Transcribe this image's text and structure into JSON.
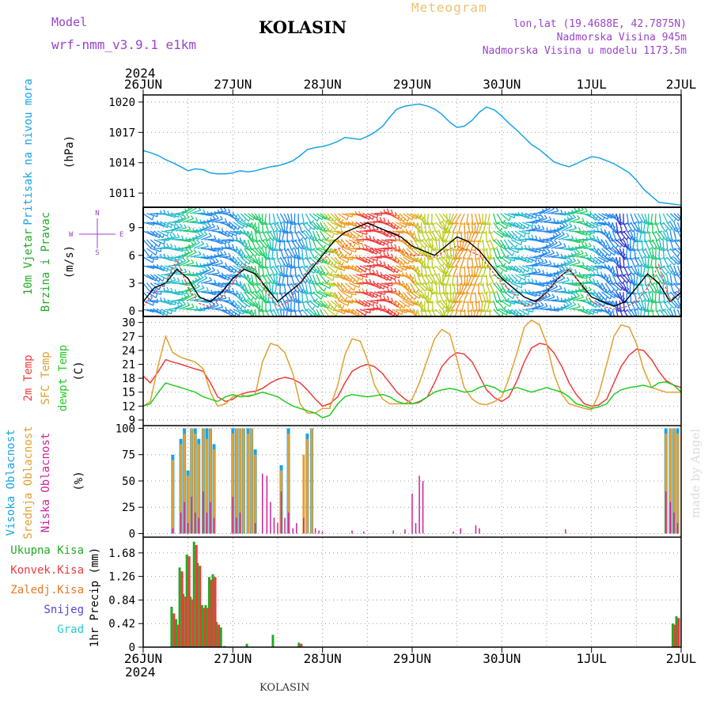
{
  "header": {
    "model_label": "Model",
    "model_name": "wrf-nmm_v3.9.1 e1km",
    "station": "KOLASIN",
    "product": "Meteogram",
    "coords": "lon,lat (19.4688E, 42.7875N)",
    "elevation": "Nadmorska Visina 945m",
    "model_elevation": "Nadmorska Visina u modelu 1173.5m",
    "footer_station": "KOLASIN",
    "credit": "made by Angel"
  },
  "time_axis": {
    "year": "2024",
    "labels": [
      "26JUN",
      "27JUN",
      "28JUN",
      "29JUN",
      "30JUN",
      "1JUL",
      "2JUL"
    ]
  },
  "colors": {
    "pressure": "#1aa3e8",
    "temp2m": "#ee3b3b",
    "sfc_temp": "#e0a030",
    "dewpoint": "#22cc22",
    "high_cloud": "#1aa3e8",
    "mid_cloud": "#e0a030",
    "low_cloud": "#cc2299",
    "precip_total": "#22aa22",
    "precip_conv": "#ee3b3b",
    "precip_strat": "#ee7722",
    "snow": "#5544dd",
    "hail": "#22cccc",
    "purple_text": "#9944cc"
  },
  "chart_data": [
    {
      "type": "line",
      "panel": "pressure",
      "ylabel": "Pritisak na nivou mora",
      "unit": "(hPa)",
      "yticks": [
        1011,
        1014,
        1017,
        1020
      ],
      "ylim": [
        1009.6,
        1020.7
      ],
      "x_days": [
        0,
        0.08,
        0.17,
        0.25,
        0.33,
        0.42,
        0.5,
        0.58,
        0.67,
        0.75,
        0.83,
        0.92,
        1.0,
        1.08,
        1.17,
        1.25,
        1.33,
        1.42,
        1.5,
        1.58,
        1.67,
        1.75,
        1.83,
        1.92,
        2.0,
        2.08,
        2.17,
        2.25,
        2.33,
        2.42,
        2.5,
        2.58,
        2.67,
        2.75,
        2.83,
        2.92,
        3.0,
        3.08,
        3.17,
        3.25,
        3.33,
        3.42,
        3.5,
        3.58,
        3.67,
        3.75,
        3.83,
        3.92,
        4.0,
        4.08,
        4.17,
        4.25,
        4.33,
        4.42,
        4.5,
        4.58,
        4.67,
        4.75,
        4.83,
        4.92,
        5.0,
        5.08,
        5.17,
        5.25,
        5.33,
        5.42,
        5.5,
        5.58,
        5.67,
        5.75,
        5.83,
        5.92,
        6.0
      ],
      "values": [
        1015.2,
        1015.0,
        1014.7,
        1014.3,
        1014.0,
        1013.6,
        1013.2,
        1013.4,
        1013.3,
        1013.0,
        1012.9,
        1012.9,
        1013.0,
        1013.2,
        1013.1,
        1013.2,
        1013.4,
        1013.6,
        1013.7,
        1013.9,
        1014.2,
        1014.7,
        1015.3,
        1015.5,
        1015.6,
        1015.8,
        1016.1,
        1016.5,
        1016.4,
        1016.3,
        1016.6,
        1017.0,
        1017.6,
        1018.5,
        1019.3,
        1019.6,
        1019.7,
        1019.8,
        1019.6,
        1019.3,
        1018.8,
        1018.0,
        1017.5,
        1017.6,
        1018.2,
        1019.0,
        1019.5,
        1019.2,
        1018.6,
        1017.9,
        1017.2,
        1016.5,
        1015.8,
        1015.3,
        1014.7,
        1014.1,
        1013.8,
        1013.6,
        1013.9,
        1014.3,
        1014.6,
        1014.5,
        1014.2,
        1013.9,
        1013.5,
        1013.0,
        1012.3,
        1011.4,
        1010.7,
        1010.1,
        1010.0,
        1009.9,
        1009.8
      ]
    },
    {
      "type": "barbs",
      "panel": "wind",
      "ylabel": "10m Vjetar Brzina i Pravac",
      "unit": "(m/s)",
      "compass": {
        "n": "N",
        "s": "S",
        "w": "W",
        "e": "E"
      },
      "yticks": [
        0,
        3,
        6,
        9
      ],
      "ylim": [
        -0.6,
        11.2
      ],
      "x_days": [
        0,
        0.125,
        0.25,
        0.375,
        0.5,
        0.625,
        0.75,
        0.875,
        1.0,
        1.125,
        1.25,
        1.375,
        1.5,
        1.625,
        1.75,
        1.875,
        2.0,
        2.125,
        2.25,
        2.375,
        2.5,
        2.625,
        2.75,
        2.875,
        3.0,
        3.125,
        3.25,
        3.375,
        3.5,
        3.625,
        3.75,
        3.875,
        4.0,
        4.125,
        4.25,
        4.375,
        4.5,
        4.625,
        4.75,
        4.875,
        5.0,
        5.125,
        5.25,
        5.375,
        5.5,
        5.625,
        5.75,
        5.875,
        6.0
      ],
      "speed": [
        1.0,
        2.5,
        3.0,
        4.5,
        3.5,
        1.5,
        1.0,
        2.0,
        3.5,
        4.5,
        4.0,
        2.5,
        1.0,
        2.0,
        3.0,
        4.5,
        6.0,
        7.5,
        8.5,
        9.0,
        9.5,
        9.0,
        8.5,
        8.0,
        7.0,
        6.5,
        6.0,
        7.0,
        8.0,
        7.5,
        6.5,
        5.0,
        3.5,
        2.5,
        1.5,
        1.0,
        2.0,
        3.5,
        4.5,
        3.0,
        1.5,
        1.0,
        0.5,
        1.0,
        2.5,
        4.0,
        3.0,
        1.0,
        2.0
      ],
      "sfc_trace": [
        0.5,
        2.0,
        3.0,
        5.5,
        2.5,
        0.8,
        0.4,
        1.5,
        3.0,
        5.0,
        4.5,
        2.0,
        0.5,
        1.0,
        3.0,
        5.0,
        5.5,
        6.5,
        7.0,
        7.5,
        7.0,
        6.5,
        6.5,
        6.5,
        6.0,
        6.0,
        5.8,
        6.5,
        7.0,
        6.5,
        6.0,
        4.5,
        3.0,
        2.0,
        0.5,
        0.8,
        2.0,
        3.5,
        4.5,
        3.0,
        1.0,
        0.5,
        0.2,
        0.4,
        1.0,
        2.5,
        5.0,
        1.0,
        2.5
      ],
      "speed_colors": [
        "#3333cc",
        "#2288ee",
        "#22bbcc",
        "#22cc66",
        "#bbcc22",
        "#ee9922",
        "#ee3b3b"
      ]
    },
    {
      "type": "line",
      "panel": "temperature",
      "series_labels": [
        "2m Temp",
        "SFC Temp",
        "dewpt Temp"
      ],
      "unit": "(C)",
      "yticks": [
        9,
        12,
        15,
        18,
        21,
        24,
        27,
        30
      ],
      "ylim": [
        7.8,
        31.3
      ],
      "x_days": [
        0,
        0.08,
        0.17,
        0.25,
        0.33,
        0.42,
        0.5,
        0.58,
        0.67,
        0.75,
        0.83,
        0.92,
        1.0,
        1.08,
        1.17,
        1.25,
        1.33,
        1.42,
        1.5,
        1.58,
        1.67,
        1.75,
        1.83,
        1.92,
        2.0,
        2.08,
        2.17,
        2.25,
        2.33,
        2.42,
        2.5,
        2.58,
        2.67,
        2.75,
        2.83,
        2.92,
        3.0,
        3.08,
        3.17,
        3.25,
        3.33,
        3.42,
        3.5,
        3.58,
        3.67,
        3.75,
        3.83,
        3.92,
        4.0,
        4.08,
        4.17,
        4.25,
        4.33,
        4.42,
        4.5,
        4.58,
        4.67,
        4.75,
        4.83,
        4.92,
        5.0,
        5.08,
        5.17,
        5.25,
        5.33,
        5.42,
        5.5,
        5.58,
        5.67,
        5.75,
        5.83,
        5.92,
        6.0
      ],
      "series": [
        {
          "values": [
            18.5,
            17.0,
            19.5,
            22.0,
            21.5,
            21.0,
            20.5,
            20.0,
            19.5,
            17.0,
            14.0,
            13.0,
            13.5,
            14.5,
            15.0,
            15.2,
            15.8,
            17.0,
            17.8,
            18.2,
            17.8,
            17.0,
            15.5,
            13.5,
            12.0,
            12.5,
            14.0,
            17.0,
            19.5,
            20.5,
            21.0,
            20.5,
            19.0,
            17.0,
            15.0,
            13.5,
            12.5,
            12.8,
            14.0,
            17.0,
            20.5,
            22.5,
            23.5,
            23.2,
            21.5,
            18.5,
            15.5,
            13.8,
            13.0,
            14.0,
            17.5,
            21.5,
            24.5,
            25.5,
            25.2,
            23.5,
            20.5,
            17.0,
            14.5,
            12.5,
            12.0,
            12.2,
            13.5,
            17.0,
            20.5,
            23.0,
            24.2,
            24.0,
            22.0,
            19.5,
            17.5,
            16.5,
            16.0
          ]
        },
        {
          "values": [
            12.0,
            13.0,
            21.0,
            27.0,
            23.5,
            22.5,
            22.0,
            21.5,
            20.0,
            15.0,
            12.0,
            12.5,
            14.0,
            14.5,
            14.0,
            14.5,
            21.5,
            25.5,
            25.0,
            23.5,
            19.0,
            12.5,
            10.5,
            10.5,
            11.5,
            11.5,
            16.5,
            23.0,
            26.5,
            26.0,
            22.0,
            16.5,
            13.5,
            12.5,
            12.5,
            12.5,
            13.5,
            17.0,
            22.0,
            26.5,
            28.5,
            27.5,
            22.0,
            16.0,
            13.5,
            12.5,
            12.3,
            13.0,
            14.0,
            18.0,
            23.5,
            29.0,
            30.5,
            29.5,
            25.5,
            19.0,
            14.5,
            12.5,
            12.0,
            11.5,
            11.2,
            14.5,
            21.0,
            27.0,
            29.5,
            29.0,
            25.5,
            20.0,
            16.0,
            15.5,
            15.0,
            15.0,
            15.0
          ]
        },
        {
          "values": [
            12.0,
            12.5,
            15.0,
            17.0,
            16.5,
            16.0,
            15.5,
            15.0,
            14.0,
            13.5,
            13.0,
            14.0,
            14.5,
            14.0,
            14.2,
            14.5,
            15.0,
            14.5,
            14.0,
            13.0,
            12.0,
            11.5,
            11.0,
            10.5,
            9.5,
            10.0,
            12.5,
            14.0,
            14.5,
            14.2,
            14.0,
            14.2,
            14.5,
            14.0,
            13.0,
            12.5,
            12.5,
            13.0,
            14.0,
            15.0,
            15.5,
            15.8,
            15.5,
            15.0,
            15.2,
            16.0,
            16.5,
            16.0,
            15.0,
            15.5,
            16.0,
            15.5,
            15.0,
            15.5,
            16.0,
            15.5,
            15.0,
            14.0,
            12.5,
            12.0,
            11.5,
            11.8,
            12.5,
            14.5,
            15.5,
            16.0,
            16.2,
            16.5,
            16.0,
            17.0,
            17.2,
            16.5,
            15.0
          ]
        }
      ]
    },
    {
      "type": "bar",
      "panel": "clouds",
      "series_labels": [
        "Visoka Oblacnost",
        "Srednja Oblacnost",
        "Niska Oblacnost"
      ],
      "unit": "(%)",
      "yticks": [
        0,
        25,
        50,
        75,
        100
      ],
      "ylim": [
        -3.4,
        102.6
      ],
      "x_days": [
        0.33,
        0.38,
        0.42,
        0.46,
        0.5,
        0.54,
        0.58,
        0.62,
        0.67,
        0.71,
        0.75,
        0.79,
        0.83,
        0.88,
        0.92,
        0.96,
        1.0,
        1.04,
        1.08,
        1.12,
        1.17,
        1.21,
        1.25,
        1.29,
        1.33,
        1.38,
        1.42,
        1.46,
        1.5,
        1.54,
        1.58,
        1.62,
        1.67,
        1.71,
        1.75,
        1.79,
        1.83,
        1.88,
        1.92,
        1.96,
        2.0,
        2.33,
        2.46,
        2.79,
        2.92,
        3.0,
        3.04,
        3.08,
        3.12,
        3.46,
        3.54,
        3.71,
        3.75,
        4.71,
        5.83,
        5.88,
        5.92,
        5.96
      ],
      "series": [
        {
          "name": "high",
          "values": [
            75,
            0,
            90,
            100,
            60,
            100,
            100,
            90,
            100,
            100,
            100,
            85,
            0,
            0,
            0,
            0,
            100,
            100,
            100,
            100,
            100,
            100,
            80,
            0,
            0,
            0,
            0,
            0,
            0,
            65,
            0,
            100,
            0,
            0,
            0,
            0,
            95,
            100,
            0,
            0,
            0,
            0,
            0,
            0,
            0,
            0,
            0,
            0,
            0,
            0,
            0,
            0,
            0,
            0,
            100,
            100,
            100,
            100
          ]
        },
        {
          "name": "mid",
          "values": [
            70,
            0,
            85,
            95,
            55,
            100,
            95,
            85,
            100,
            90,
            100,
            80,
            0,
            0,
            0,
            0,
            95,
            100,
            100,
            100,
            95,
            100,
            75,
            0,
            0,
            0,
            0,
            0,
            0,
            60,
            0,
            95,
            0,
            0,
            0,
            75,
            90,
            100,
            0,
            0,
            0,
            0,
            0,
            0,
            0,
            0,
            0,
            0,
            0,
            0,
            0,
            0,
            0,
            0,
            95,
            100,
            100,
            95
          ]
        },
        {
          "name": "low",
          "values": [
            5,
            0,
            20,
            30,
            10,
            35,
            20,
            15,
            40,
            20,
            30,
            15,
            0,
            0,
            0,
            0,
            35,
            15,
            20,
            0,
            0,
            0,
            10,
            0,
            57,
            55,
            30,
            15,
            10,
            40,
            15,
            20,
            5,
            10,
            0,
            15,
            0,
            0,
            5,
            3,
            2,
            3,
            2,
            3,
            4,
            38,
            10,
            55,
            50,
            2,
            5,
            8,
            5,
            4,
            40,
            30,
            20,
            10
          ]
        }
      ]
    },
    {
      "type": "bar",
      "panel": "precip",
      "series_labels": [
        "Ukupna Kisa",
        "Konvek.Kisa",
        "Zaledj.Kisa",
        "Snijeg",
        "Grad"
      ],
      "ylabel": "1hr Precip",
      "unit": "(mm)",
      "yticks": [
        0,
        0.42,
        0.84,
        1.26,
        1.68
      ],
      "ylim": [
        0,
        1.96
      ],
      "x_days": [
        0.33,
        0.38,
        0.42,
        0.46,
        0.5,
        0.54,
        0.58,
        0.62,
        0.67,
        0.71,
        0.75,
        0.79,
        0.83,
        0.88,
        0.92,
        1.17,
        1.46,
        1.75,
        5.92,
        5.96
      ],
      "series": [
        {
          "name": "total",
          "values": [
            0.72,
            0.5,
            1.42,
            0.95,
            1.65,
            0.9,
            1.88,
            1.5,
            0.75,
            0.75,
            1.25,
            1.3,
            0.45,
            0.35,
            0.02,
            0.06,
            0.22,
            0.08,
            0.42,
            0.55
          ]
        },
        {
          "name": "convective",
          "values": [
            0.6,
            0.4,
            1.35,
            0.9,
            1.62,
            0.85,
            1.82,
            1.45,
            0.7,
            0.7,
            1.2,
            1.25,
            0.4,
            0,
            0,
            0,
            0,
            0.06,
            0.4,
            0.52
          ]
        }
      ]
    }
  ]
}
